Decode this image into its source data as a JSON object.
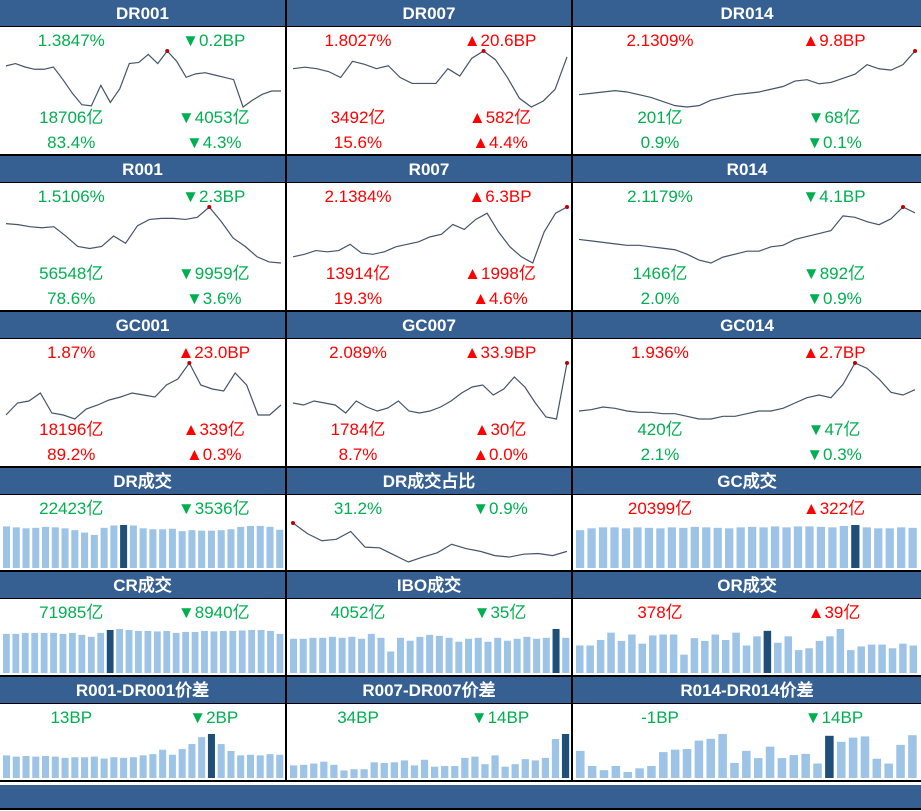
{
  "colors": {
    "header": "#376092",
    "up": "#FF0000",
    "down": "#00B050",
    "bar": "#9DC3E6",
    "bar_current": "#1F4E79",
    "line": "#44546A"
  },
  "rows": [
    {
      "kind": "line",
      "panels": [
        {
          "title": "DR001",
          "v1": {
            "t": "1.3847%",
            "c": "g"
          },
          "d1": {
            "t": "▼0.2BP",
            "c": "g"
          },
          "v2": {
            "t": "18706亿",
            "c": "g"
          },
          "d2": {
            "t": "▼4053亿",
            "c": "g"
          },
          "v3": {
            "t": "83.4%",
            "c": "g"
          },
          "d3": {
            "t": "▼4.3%",
            "c": "g"
          },
          "series": [
            62,
            64,
            61,
            59,
            59,
            61,
            50,
            38,
            28,
            27,
            45,
            30,
            42,
            64,
            65,
            72,
            64,
            75,
            66,
            52,
            55,
            56,
            54,
            52,
            50,
            26,
            32,
            37,
            40,
            40
          ]
        },
        {
          "title": "DR007",
          "v1": {
            "t": "1.8027%",
            "c": "r"
          },
          "d1": {
            "t": "▲20.6BP",
            "c": "r"
          },
          "v2": {
            "t": "3492亿",
            "c": "r"
          },
          "d2": {
            "t": "▲582亿",
            "c": "r"
          },
          "v3": {
            "t": "15.6%",
            "c": "r"
          },
          "d3": {
            "t": "▲4.4%",
            "c": "r"
          },
          "series": [
            50,
            51,
            50,
            48,
            44,
            55,
            53,
            50,
            52,
            44,
            40,
            40,
            40,
            50,
            45,
            57,
            62,
            56,
            44,
            30,
            24,
            28,
            36,
            58
          ]
        },
        {
          "title": "DR014",
          "v1": {
            "t": "2.1309%",
            "c": "r"
          },
          "d1": {
            "t": "▲9.8BP",
            "c": "r"
          },
          "v2": {
            "t": "201亿",
            "c": "g"
          },
          "d2": {
            "t": "▼68亿",
            "c": "g"
          },
          "v3": {
            "t": "0.9%",
            "c": "g"
          },
          "d3": {
            "t": "▼0.1%",
            "c": "g"
          },
          "series": [
            30,
            31,
            32,
            33,
            32,
            30,
            28,
            25,
            22,
            21,
            22,
            26,
            28,
            30,
            31,
            32,
            34,
            36,
            40,
            41,
            38,
            39,
            42,
            45,
            52,
            49,
            48,
            52,
            62
          ]
        }
      ]
    },
    {
      "kind": "line",
      "panels": [
        {
          "title": "R001",
          "v1": {
            "t": "1.5106%",
            "c": "g"
          },
          "d1": {
            "t": "▼2.3BP",
            "c": "g"
          },
          "v2": {
            "t": "56548亿",
            "c": "g"
          },
          "d2": {
            "t": "▼9959亿",
            "c": "g"
          },
          "v3": {
            "t": "78.6%",
            "c": "g"
          },
          "d3": {
            "t": "▼3.6%",
            "c": "g"
          },
          "series": [
            52,
            51,
            49,
            48,
            49,
            40,
            30,
            28,
            30,
            40,
            33,
            50,
            56,
            57,
            57,
            56,
            58,
            68,
            54,
            38,
            30,
            20,
            15,
            14
          ]
        },
        {
          "title": "R007",
          "v1": {
            "t": "2.1384%",
            "c": "r"
          },
          "d1": {
            "t": "▲6.3BP",
            "c": "r"
          },
          "v2": {
            "t": "13914亿",
            "c": "r"
          },
          "d2": {
            "t": "▲1998亿",
            "c": "r"
          },
          "v3": {
            "t": "19.3%",
            "c": "r"
          },
          "d3": {
            "t": "▲4.6%",
            "c": "r"
          },
          "series": [
            20,
            22,
            25,
            24,
            25,
            30,
            23,
            22,
            24,
            28,
            30,
            32,
            36,
            38,
            46,
            42,
            50,
            55,
            40,
            28,
            20,
            15,
            40,
            55,
            60
          ]
        },
        {
          "title": "R014",
          "v1": {
            "t": "2.1179%",
            "c": "g"
          },
          "d1": {
            "t": "▼4.1BP",
            "c": "g"
          },
          "v2": {
            "t": "1466亿",
            "c": "g"
          },
          "d2": {
            "t": "▼892亿",
            "c": "g"
          },
          "v3": {
            "t": "2.0%",
            "c": "g"
          },
          "d3": {
            "t": "▼0.9%",
            "c": "g"
          },
          "series": [
            40,
            39,
            38,
            37,
            36,
            36,
            35,
            34,
            33,
            30,
            26,
            24,
            28,
            30,
            32,
            32,
            35,
            36,
            40,
            42,
            44,
            46,
            56,
            55,
            52,
            50,
            54,
            62,
            58
          ]
        }
      ]
    },
    {
      "kind": "line",
      "panels": [
        {
          "title": "GC001",
          "v1": {
            "t": "1.87%",
            "c": "r"
          },
          "d1": {
            "t": "▲23.0BP",
            "c": "r"
          },
          "v2": {
            "t": "18196亿",
            "c": "r"
          },
          "d2": {
            "t": "▲339亿",
            "c": "r"
          },
          "v3": {
            "t": "89.2%",
            "c": "r"
          },
          "d3": {
            "t": "▲0.3%",
            "c": "r"
          },
          "series": [
            30,
            42,
            44,
            52,
            32,
            30,
            26,
            36,
            40,
            45,
            48,
            52,
            50,
            48,
            60,
            66,
            82,
            60,
            56,
            54,
            72,
            60,
            30,
            30,
            40
          ]
        },
        {
          "title": "GC007",
          "v1": {
            "t": "2.089%",
            "c": "r"
          },
          "d1": {
            "t": "▲33.9BP",
            "c": "r"
          },
          "v2": {
            "t": "1784亿",
            "c": "r"
          },
          "d2": {
            "t": "▲30亿",
            "c": "r"
          },
          "v3": {
            "t": "8.7%",
            "c": "r"
          },
          "d3": {
            "t": "▲0.0%",
            "c": "r"
          },
          "series": [
            40,
            38,
            42,
            40,
            38,
            30,
            42,
            36,
            32,
            35,
            42,
            32,
            30,
            32,
            36,
            42,
            50,
            56,
            58,
            48,
            54,
            66,
            56,
            40,
            26,
            24,
            80
          ]
        },
        {
          "title": "GC014",
          "v1": {
            "t": "1.936%",
            "c": "r"
          },
          "d1": {
            "t": "▲2.7BP",
            "c": "r"
          },
          "v2": {
            "t": "420亿",
            "c": "g"
          },
          "d2": {
            "t": "▼47亿",
            "c": "g"
          },
          "v3": {
            "t": "2.1%",
            "c": "g"
          },
          "d3": {
            "t": "▼0.3%",
            "c": "g"
          },
          "series": [
            34,
            35,
            37,
            36,
            34,
            33,
            33,
            32,
            32,
            30,
            28,
            28,
            30,
            30,
            32,
            34,
            34,
            36,
            40,
            44,
            46,
            44,
            54,
            70,
            66,
            58,
            48,
            46,
            50
          ]
        }
      ]
    },
    {
      "kind": "small",
      "panels": [
        {
          "title": "DR成交",
          "v1": {
            "t": "22423亿",
            "c": "g"
          },
          "d1": {
            "t": "▼3536亿",
            "c": "g"
          },
          "chart": "bar",
          "current": 12,
          "series": [
            88,
            86,
            84,
            85,
            87,
            86,
            84,
            80,
            75,
            70,
            85,
            90,
            91,
            90,
            84,
            82,
            82,
            83,
            78,
            80,
            79,
            79,
            80,
            82,
            87,
            89,
            89,
            87,
            81
          ]
        },
        {
          "title": "DR成交占比",
          "v1": {
            "t": "31.2%",
            "c": "g"
          },
          "d1": {
            "t": "▼0.9%",
            "c": "g"
          },
          "chart": "line",
          "series": [
            70,
            55,
            45,
            47,
            58,
            36,
            35,
            25,
            15,
            22,
            28,
            40,
            34,
            30,
            24,
            22,
            26,
            27,
            24,
            30
          ]
        },
        {
          "title": "GC成交",
          "v1": {
            "t": "20399亿",
            "c": "r"
          },
          "d1": {
            "t": "▲322亿",
            "c": "r"
          },
          "chart": "bar",
          "current": 24,
          "series": [
            80,
            84,
            86,
            86,
            84,
            86,
            85,
            84,
            86,
            85,
            87,
            86,
            85,
            84,
            86,
            87,
            86,
            88,
            86,
            88,
            88,
            87,
            86,
            89,
            91,
            86,
            84,
            84,
            86,
            85
          ]
        }
      ]
    },
    {
      "kind": "small",
      "panels": [
        {
          "title": "CR成交",
          "v1": {
            "t": "71985亿",
            "c": "g"
          },
          "d1": {
            "t": "▼8940亿",
            "c": "g"
          },
          "chart": "bar",
          "current": 11,
          "series": [
            80,
            80,
            82,
            82,
            82,
            82,
            80,
            82,
            78,
            74,
            82,
            88,
            90,
            88,
            86,
            86,
            85,
            86,
            82,
            84,
            84,
            86,
            85,
            86,
            86,
            87,
            88,
            88,
            86,
            80
          ]
        },
        {
          "title": "IBO成交",
          "v1": {
            "t": "4052亿",
            "c": "g"
          },
          "d1": {
            "t": "▼35亿",
            "c": "g"
          },
          "chart": "bar",
          "current": 27,
          "series": [
            70,
            70,
            72,
            72,
            74,
            72,
            74,
            70,
            80,
            72,
            44,
            72,
            66,
            74,
            78,
            76,
            72,
            64,
            70,
            72,
            64,
            72,
            66,
            70,
            74,
            70,
            72,
            90,
            72
          ]
        },
        {
          "title": "OR成交",
          "v1": {
            "t": "378亿",
            "c": "r"
          },
          "d1": {
            "t": "▲39亿",
            "c": "r"
          },
          "chart": "bar",
          "current": 18,
          "series": [
            60,
            60,
            72,
            88,
            70,
            84,
            64,
            82,
            84,
            84,
            40,
            76,
            70,
            84,
            72,
            88,
            60,
            80,
            92,
            66,
            80,
            50,
            54,
            70,
            80,
            96,
            50,
            58,
            62,
            62,
            54,
            64,
            60
          ]
        }
      ]
    },
    {
      "kind": "small",
      "panels": [
        {
          "title": "R001-DR001价差",
          "v1": {
            "t": "13BP",
            "c": "g"
          },
          "d1": {
            "t": "▼2BP",
            "c": "g"
          },
          "chart": "bar",
          "current": 21,
          "series": [
            36,
            34,
            35,
            34,
            35,
            34,
            32,
            33,
            33,
            34,
            31,
            33,
            32,
            33,
            36,
            38,
            45,
            37,
            46,
            54,
            65,
            70,
            54,
            43,
            36,
            37,
            36,
            38,
            37
          ]
        },
        {
          "title": "R007-DR007价差",
          "v1": {
            "t": "34BP",
            "c": "g"
          },
          "d1": {
            "t": "▼14BP",
            "c": "g"
          },
          "chart": "bar",
          "current": 27,
          "series": [
            20,
            21,
            23,
            26,
            21,
            12,
            14,
            14,
            25,
            24,
            25,
            28,
            20,
            29,
            18,
            19,
            19,
            32,
            34,
            22,
            36,
            18,
            22,
            30,
            28,
            32,
            62,
            70
          ]
        },
        {
          "title": "R014-DR014价差",
          "v1": {
            "t": "-1BP",
            "c": "g"
          },
          "d1": {
            "t": "▼14BP",
            "c": "g"
          },
          "chart": "bar",
          "current": 21,
          "series": [
            45,
            20,
            13,
            20,
            10,
            16,
            20,
            43,
            47,
            48,
            62,
            65,
            73,
            25,
            45,
            33,
            52,
            33,
            38,
            40,
            24,
            70,
            60,
            67,
            69,
            32,
            24,
            55,
            71
          ]
        }
      ]
    }
  ]
}
